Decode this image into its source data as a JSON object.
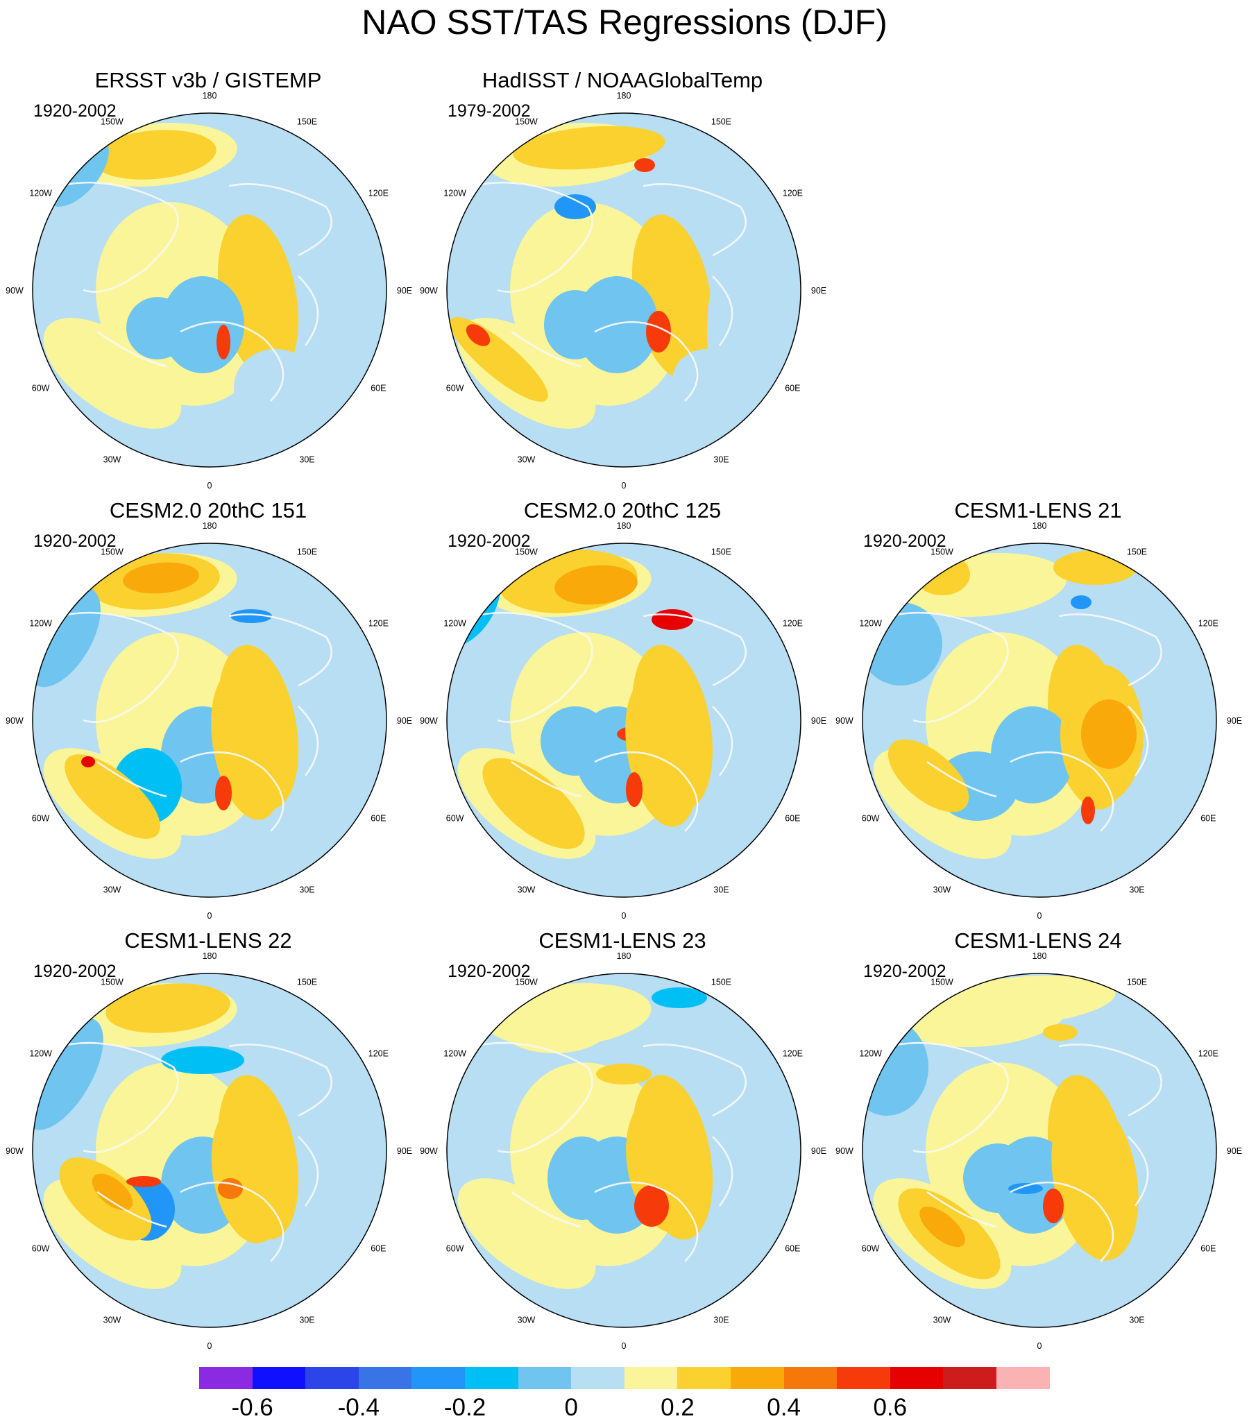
{
  "title": "NAO SST/TAS Regressions (DJF)",
  "lon_labels": [
    "180",
    "150E",
    "120E",
    "90E",
    "60E",
    "30E",
    "0",
    "30W",
    "60W",
    "90W",
    "120W",
    "150W"
  ],
  "panels": [
    {
      "title": "ERSST v3b / GISTEMP",
      "period": "1920-2002",
      "variant": "obs1"
    },
    {
      "title": "HadISST / NOAAGlobalTemp",
      "period": "1979-2002",
      "variant": "obs2"
    },
    {
      "title": "CESM2.0 20thC 151",
      "period": "1920-2002",
      "variant": "m151"
    },
    {
      "title": "CESM2.0 20thC 125",
      "period": "1920-2002",
      "variant": "m125"
    },
    {
      "title": "CESM1-LENS 21",
      "period": "1920-2002",
      "variant": "l21"
    },
    {
      "title": "CESM1-LENS 22",
      "period": "1920-2002",
      "variant": "l22"
    },
    {
      "title": "CESM1-LENS 23",
      "period": "1920-2002",
      "variant": "l23"
    },
    {
      "title": "CESM1-LENS 24",
      "period": "1920-2002",
      "variant": "l24"
    }
  ],
  "colorbar": {
    "colors": [
      "#8a2be2",
      "#1010ff",
      "#2b45e8",
      "#3874e6",
      "#2196f8",
      "#00bff5",
      "#6fc4f0",
      "#b7def3",
      "#fbf59a",
      "#fad12f",
      "#f9a90a",
      "#f7780a",
      "#f73a0a",
      "#e60000",
      "#cd1c1c",
      "#fbb2b2"
    ],
    "labels": [
      "-0.6",
      "-0.4",
      "-0.2",
      "0",
      "0.2",
      "0.4",
      "0.6"
    ]
  },
  "colors": {
    "land_outline": "#ffffff",
    "coast": "#7a7a7a",
    "frame": "#000000"
  }
}
